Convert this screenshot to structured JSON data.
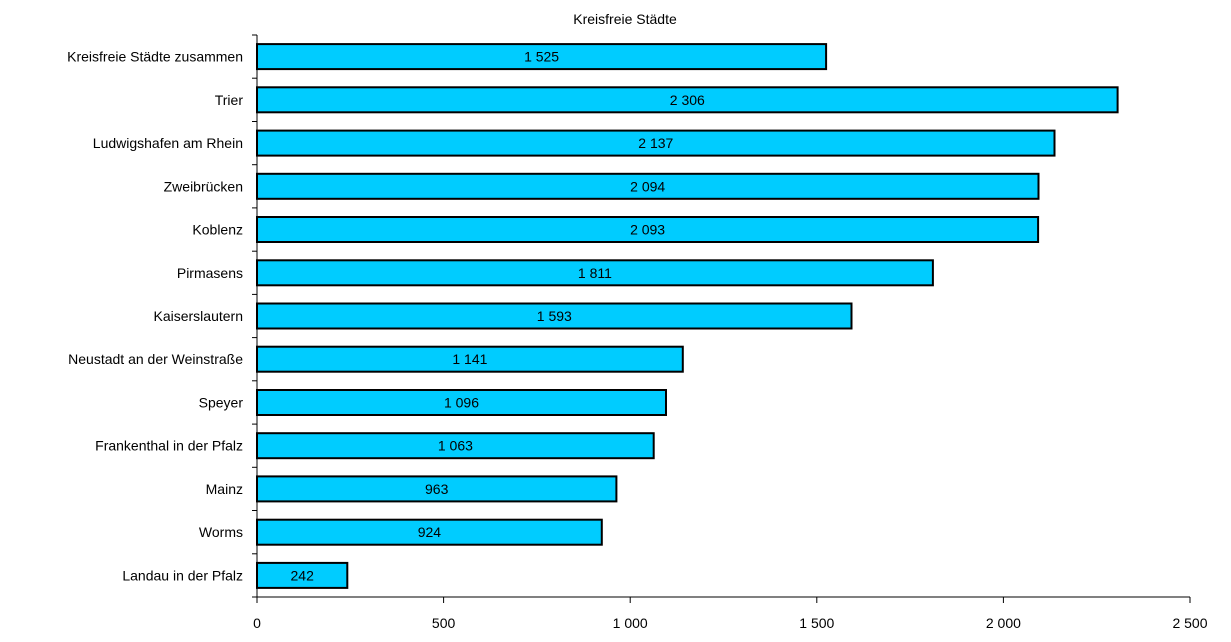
{
  "chart_data": {
    "type": "bar",
    "orientation": "horizontal",
    "title": "Kreisfreie Städte",
    "xlabel": "",
    "ylabel": "",
    "categories": [
      "Kreisfreie Städte zusammen",
      "Trier",
      "Ludwigshafen am Rhein",
      "Zweibrücken",
      "Koblenz",
      "Pirmasens",
      "Kaiserslautern",
      "Neustadt an der Weinstraße",
      "Speyer",
      "Frankenthal in der Pfalz",
      "Mainz",
      "Worms",
      "Landau  in der Pfalz"
    ],
    "values": [
      1525,
      2306,
      2137,
      2094,
      2093,
      1811,
      1593,
      1141,
      1096,
      1063,
      963,
      924,
      242
    ],
    "value_labels": [
      "1 525",
      "2 306",
      "2 137",
      "2 094",
      "2 093",
      "1 811",
      "1 593",
      "1 141",
      "1 096",
      "1 063",
      "963",
      "924",
      "242"
    ],
    "xlim": [
      0,
      2500
    ],
    "x_ticks": [
      0,
      500,
      1000,
      1500,
      2000,
      2500
    ],
    "x_tick_labels": [
      "0",
      "500",
      "1 000",
      "1 500",
      "2 000",
      "2 500"
    ],
    "grid": false,
    "legend": "none",
    "colors": {
      "bar_fill": "#00ccff",
      "bar_stroke": "#000000",
      "axis": "#000000",
      "text": "#000000",
      "background": "#ffffff"
    }
  }
}
